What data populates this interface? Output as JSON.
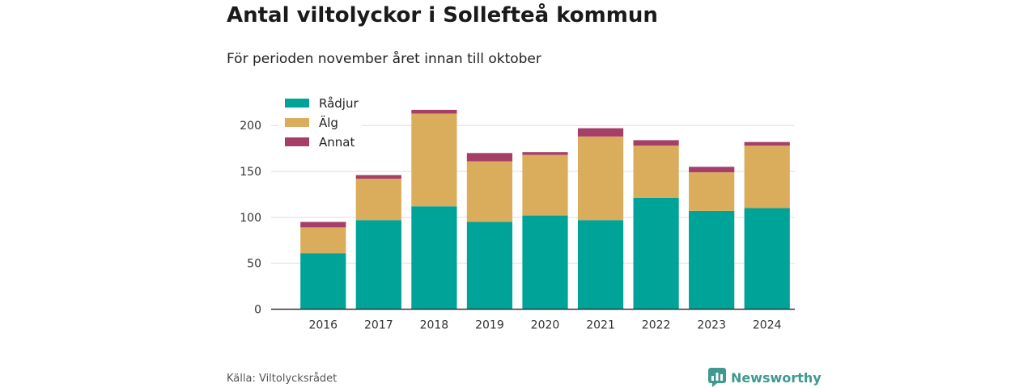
{
  "title": "Antal viltolyckor i Sollefteå kommun",
  "subtitle": "För perioden november året innan till oktober",
  "source": "Källa: Viltolycksrådet",
  "brand": {
    "name": "Newsworthy",
    "icon": "newsworthy-logo-icon"
  },
  "colors": {
    "radjur": "#00a398",
    "alg": "#d9ad5b",
    "annat": "#a53f68",
    "grid": "#dddddd",
    "axis": "#333333"
  },
  "chart_data": {
    "type": "bar",
    "stacked": true,
    "categories": [
      "2016",
      "2017",
      "2018",
      "2019",
      "2020",
      "2021",
      "2022",
      "2023",
      "2024"
    ],
    "series": [
      {
        "name": "Rådjur",
        "color": "#00a398",
        "values": [
          61,
          97,
          112,
          95,
          102,
          97,
          121,
          107,
          110
        ]
      },
      {
        "name": "Älg",
        "color": "#d9ad5b",
        "values": [
          28,
          45,
          101,
          66,
          66,
          91,
          57,
          42,
          68
        ]
      },
      {
        "name": "Annat",
        "color": "#a53f68",
        "values": [
          6,
          4,
          4,
          9,
          3,
          9,
          6,
          6,
          4
        ]
      }
    ],
    "ylim": [
      0,
      220
    ],
    "yticks": [
      0,
      50,
      100,
      150,
      200
    ],
    "grid": true,
    "legend": "top-left"
  }
}
